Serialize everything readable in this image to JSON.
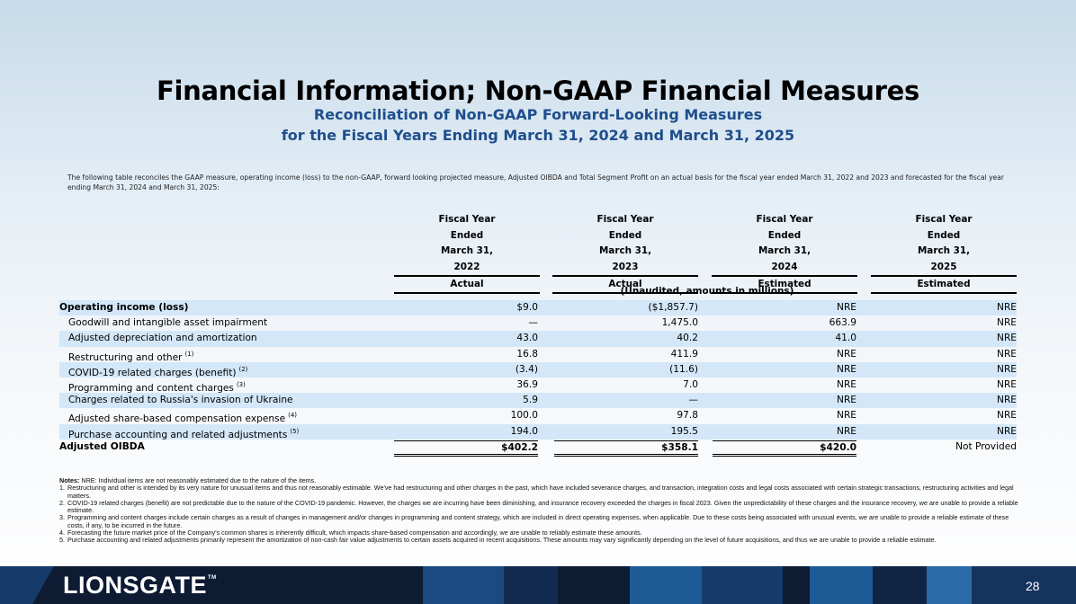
{
  "header": {
    "title": "Financial Information; Non-GAAP Financial Measures",
    "subtitle_line1": "Reconciliation of Non-GAAP Forward-Looking Measures",
    "subtitle_line2": "for the Fiscal Years Ending March 31, 2024 and March 31, 2025"
  },
  "intro": "The following table reconciles the GAAP measure, operating income (loss) to the non-GAAP, forward looking projected measure, Adjusted OIBDA and Total Segment Profit on an actual basis for the fiscal year ended March 31, 2022 and 2023 and forecasted for the fiscal year ending March 31, 2024 and March 31, 2025:",
  "columns": [
    {
      "l1": "Fiscal Year",
      "l2": "Ended",
      "l3": "March 31,",
      "year": "2022",
      "basis": "Actual"
    },
    {
      "l1": "Fiscal Year",
      "l2": "Ended",
      "l3": "March 31,",
      "year": "2023",
      "basis": "Actual"
    },
    {
      "l1": "Fiscal Year",
      "l2": "Ended",
      "l3": "March 31,",
      "year": "2024",
      "basis": "Estimated"
    },
    {
      "l1": "Fiscal Year",
      "l2": "Ended",
      "l3": "March 31,",
      "year": "2025",
      "basis": "Estimated"
    }
  ],
  "unaudited": "(Unaudited, amounts in millions)",
  "rows": [
    {
      "label": "Operating income (loss)",
      "sup": "",
      "values": [
        "$9.0",
        "($1,857.7)",
        "NRE",
        "NRE"
      ]
    },
    {
      "label": "Goodwill and intangible asset impairment",
      "sup": "",
      "values": [
        "—",
        "1,475.0",
        "663.9",
        "NRE"
      ]
    },
    {
      "label": "Adjusted depreciation and amortization",
      "sup": "",
      "values": [
        "43.0",
        "40.2",
        "41.0",
        "NRE"
      ]
    },
    {
      "label": "Restructuring and other",
      "sup": "(1)",
      "values": [
        "16.8",
        "411.9",
        "NRE",
        "NRE"
      ]
    },
    {
      "label": "COVID-19 related charges (benefit)",
      "sup": "(2)",
      "values": [
        "(3.4)",
        "(11.6)",
        "NRE",
        "NRE"
      ]
    },
    {
      "label": "Programming and content charges",
      "sup": "(3)",
      "values": [
        "36.9",
        "7.0",
        "NRE",
        "NRE"
      ]
    },
    {
      "label": "Charges related to Russia's invasion of Ukraine",
      "sup": "",
      "values": [
        "5.9",
        "—",
        "NRE",
        "NRE"
      ]
    },
    {
      "label": "Adjusted share-based compensation expense",
      "sup": "(4)",
      "values": [
        "100.0",
        "97.8",
        "NRE",
        "NRE"
      ]
    },
    {
      "label": "Purchase accounting and related adjustments",
      "sup": "(5)",
      "values": [
        "194.0",
        "195.5",
        "NRE",
        "NRE"
      ]
    },
    {
      "label": "Adjusted OIBDA",
      "sup": "",
      "values": [
        "$402.2",
        "$358.1",
        "$420.0",
        "Not Provided"
      ]
    }
  ],
  "notes": {
    "label": "Notes:",
    "text": "NRE: Individual items are not reasonably estimated due to the nature of the items.",
    "items": [
      {
        "num": "1.",
        "text": "Restructuring and other is intended by its very nature for unusual items and thus not reasonably estimable. We've had restructuring and other charges in the past, which have included severance charges, and transaction, integration costs and legal costs associated with certain strategic transactions, restructuring activities and legal matters."
      },
      {
        "num": "2.",
        "text": "COVID-19 related charges (benefit) are not predictable due to the nature of the COVID-19 pandemic. However, the charges we are incurring have been diminishing, and insurance recovery exceeded the charges in fiscal 2023. Given the unpredictability of these charges and the insurance recovery, we are unable to provide a reliable estimate."
      },
      {
        "num": "3.",
        "text": "Programming and content charges include certain charges as a result of changes in management and/or changes in programming and content strategy, which are included in direct operating expenses, when applicable. Due to these costs being associated with unusual events, we are unable to provide a reliable estimate of these costs, if any, to be incurred in the future."
      },
      {
        "num": "4.",
        "text": "Forecasting the future market price of the Company's common shares is inherently difficult, which impacts share-based compensation and accordingly, we are unable to reliably estimate these amounts."
      },
      {
        "num": "5.",
        "text": "Purchase accounting and related adjustments primarily represent the amortization of non-cash fair value adjustments to certain assets acquired in recent acquisitions. These amounts may vary significantly depending on the level of future acquisitions, and thus we are unable to provide a reliable estimate."
      }
    ]
  },
  "footer": {
    "logo": "LIONSGATE",
    "logo_tm": "TM",
    "page_number": "28"
  },
  "colors": {
    "subtitle": "#1f4e8c",
    "row_shade": "#d3e7f8",
    "footer_bg": "#0d1b33",
    "footer_stripe_light": "#1e5a96",
    "footer_stripe_dark": "#163b6b"
  }
}
